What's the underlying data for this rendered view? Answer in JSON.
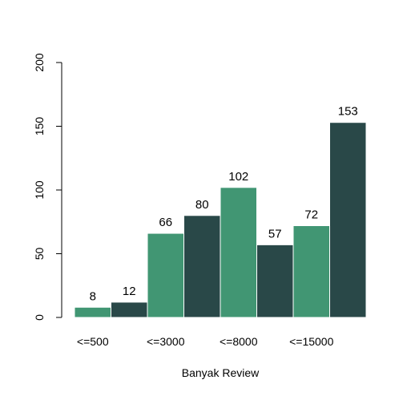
{
  "chart_data": {
    "type": "bar",
    "title": "",
    "xlabel": "Banyak Review",
    "ylabel": "",
    "ylim": [
      0,
      200
    ],
    "yticks": [
      0,
      50,
      100,
      150,
      200
    ],
    "x_tick_labels": [
      "<=500",
      "<=3000",
      "<=8000",
      "<=15000"
    ],
    "bars": [
      {
        "label": "8",
        "value": 8,
        "color": "#419673"
      },
      {
        "label": "12",
        "value": 12,
        "color": "#294848"
      },
      {
        "label": "66",
        "value": 66,
        "color": "#419673"
      },
      {
        "label": "80",
        "value": 80,
        "color": "#294848"
      },
      {
        "label": "102",
        "value": 102,
        "color": "#419673"
      },
      {
        "label": "57",
        "value": 57,
        "color": "#294848"
      },
      {
        "label": "72",
        "value": 72,
        "color": "#419673"
      },
      {
        "label": "153",
        "value": 153,
        "color": "#294848"
      }
    ],
    "grid": false,
    "legend": "none"
  }
}
